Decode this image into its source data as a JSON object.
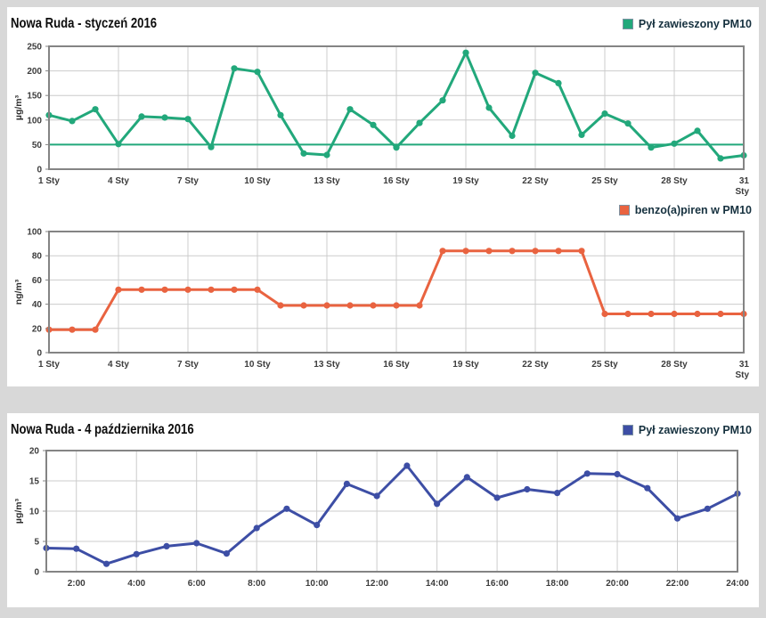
{
  "page": {
    "background_color": "#d8d8d8",
    "card_color": "#ffffff",
    "grid_color": "#cccccc",
    "frame_color": "#848484"
  },
  "sections": [
    {
      "title": "Nowa Ruda - styczeń 2016"
    },
    {
      "title": "Nowa Ruda - 4 października 2016"
    }
  ],
  "chart_data": [
    {
      "type": "line",
      "section_title": "Nowa Ruda - styczeń 2016",
      "series_name": "Pył zawieszony PM10",
      "color": "#22a87b",
      "marker": "circle",
      "ylabel": "µg/m³",
      "ylim": [
        0,
        250
      ],
      "yticks": [
        0,
        50,
        100,
        150,
        200,
        250
      ],
      "reference_line": 50,
      "grid": true,
      "legend_position": "top-right",
      "x": [
        1,
        2,
        3,
        4,
        5,
        6,
        7,
        8,
        9,
        10,
        11,
        12,
        13,
        14,
        15,
        16,
        17,
        18,
        19,
        20,
        21,
        22,
        23,
        24,
        25,
        26,
        27,
        28,
        29,
        30,
        31
      ],
      "values": [
        110,
        98,
        122,
        51,
        107,
        105,
        102,
        45,
        205,
        198,
        110,
        32,
        29,
        122,
        90,
        44,
        94,
        140,
        237,
        125,
        68,
        196,
        175,
        70,
        113,
        93,
        44,
        52,
        78,
        22,
        28
      ],
      "grid_x": [
        4,
        7,
        10,
        13,
        16,
        19,
        22,
        25,
        28
      ],
      "xticks": [
        {
          "v": 1,
          "label": "1 Sty"
        },
        {
          "v": 4,
          "label": "4 Sty"
        },
        {
          "v": 7,
          "label": "7 Sty"
        },
        {
          "v": 10,
          "label": "10 Sty"
        },
        {
          "v": 13,
          "label": "13 Sty"
        },
        {
          "v": 16,
          "label": "16 Sty"
        },
        {
          "v": 19,
          "label": "19 Sty"
        },
        {
          "v": 22,
          "label": "22 Sty"
        },
        {
          "v": 25,
          "label": "25 Sty"
        },
        {
          "v": 28,
          "label": "28 Sty"
        },
        {
          "v": 31,
          "label": "31",
          "label2": "Sty"
        }
      ]
    },
    {
      "type": "line",
      "section_title": "Nowa Ruda - styczeń 2016",
      "series_name": "benzo(a)piren w PM10",
      "color": "#e96340",
      "marker": "circle",
      "ylabel": "ng/m³",
      "ylim": [
        0,
        100
      ],
      "yticks": [
        0,
        20,
        40,
        60,
        80,
        100
      ],
      "reference_line": null,
      "grid": true,
      "legend_position": "top-right",
      "x": [
        1,
        2,
        3,
        4,
        5,
        6,
        7,
        8,
        9,
        10,
        11,
        12,
        13,
        14,
        15,
        16,
        17,
        18,
        19,
        20,
        21,
        22,
        23,
        24,
        25,
        26,
        27,
        28,
        29,
        30,
        31
      ],
      "values": [
        19,
        19,
        19,
        52,
        52,
        52,
        52,
        52,
        52,
        52,
        39,
        39,
        39,
        39,
        39,
        39,
        39,
        84,
        84,
        84,
        84,
        84,
        84,
        84,
        32,
        32,
        32,
        32,
        32,
        32,
        32
      ],
      "grid_x": [
        4,
        7,
        10,
        13,
        16,
        19,
        22,
        25,
        28
      ],
      "xticks": [
        {
          "v": 1,
          "label": "1 Sty"
        },
        {
          "v": 4,
          "label": "4 Sty"
        },
        {
          "v": 7,
          "label": "7 Sty"
        },
        {
          "v": 10,
          "label": "10 Sty"
        },
        {
          "v": 13,
          "label": "13 Sty"
        },
        {
          "v": 16,
          "label": "16 Sty"
        },
        {
          "v": 19,
          "label": "19 Sty"
        },
        {
          "v": 22,
          "label": "22 Sty"
        },
        {
          "v": 25,
          "label": "25 Sty"
        },
        {
          "v": 28,
          "label": "28 Sty"
        },
        {
          "v": 31,
          "label": "31",
          "label2": "Sty"
        }
      ]
    },
    {
      "type": "line",
      "section_title": "Nowa Ruda - 4 października 2016",
      "series_name": "Pył zawieszony PM10",
      "color": "#3d4ea5",
      "marker": "circle",
      "ylabel": "µg/m³",
      "ylim": [
        0,
        20
      ],
      "yticks": [
        0,
        5,
        10,
        15,
        20
      ],
      "reference_line": null,
      "grid": true,
      "legend_position": "top-right",
      "x": [
        1,
        2,
        3,
        4,
        5,
        6,
        7,
        8,
        9,
        10,
        11,
        12,
        13,
        14,
        15,
        16,
        17,
        18,
        19,
        20,
        21,
        22,
        23,
        24
      ],
      "values": [
        3.9,
        3.8,
        1.3,
        2.9,
        4.2,
        4.7,
        3.0,
        7.2,
        10.4,
        7.7,
        14.5,
        12.5,
        17.5,
        11.2,
        15.6,
        12.2,
        13.6,
        13.0,
        16.2,
        16.1,
        13.8,
        8.8,
        10.4,
        12.9
      ],
      "grid_x": [
        2,
        4,
        6,
        8,
        10,
        12,
        14,
        16,
        18,
        20,
        22
      ],
      "xticks": [
        {
          "v": 2,
          "label": "2:00"
        },
        {
          "v": 4,
          "label": "4:00"
        },
        {
          "v": 6,
          "label": "6:00"
        },
        {
          "v": 8,
          "label": "8:00"
        },
        {
          "v": 10,
          "label": "10:00"
        },
        {
          "v": 12,
          "label": "12:00"
        },
        {
          "v": 14,
          "label": "14:00"
        },
        {
          "v": 16,
          "label": "16:00"
        },
        {
          "v": 18,
          "label": "18:00"
        },
        {
          "v": 20,
          "label": "20:00"
        },
        {
          "v": 22,
          "label": "22:00"
        },
        {
          "v": 24,
          "label": "24:00"
        }
      ]
    }
  ]
}
